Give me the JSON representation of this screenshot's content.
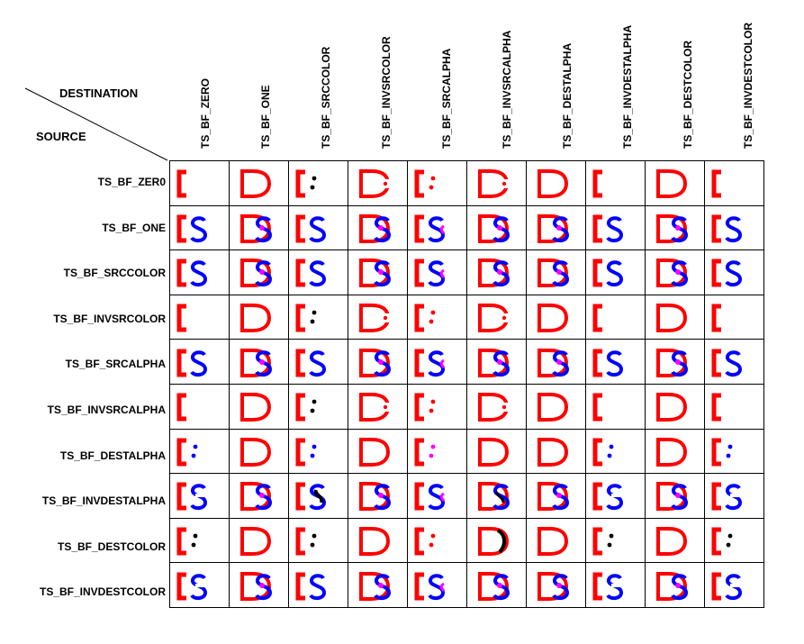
{
  "header": {
    "destination_label": "DESTINATION",
    "source_label": "SOURCE"
  },
  "columns": [
    {
      "label": "TS_BF_ZERO",
      "dest": "bracket"
    },
    {
      "label": "TS_BF_ONE",
      "dest": "D"
    },
    {
      "label": "TS_BF_SRCCOLOR",
      "dest": "bracket_dots"
    },
    {
      "label": "TS_BF_INVSRCOLOR",
      "dest": "D_broken"
    },
    {
      "label": "TS_BF_SRCALPHA",
      "dest": "bracket_dots"
    },
    {
      "label": "TS_BF_INVSRCALPHA",
      "dest": "D_broken"
    },
    {
      "label": "TS_BF_DESTALPHA",
      "dest": "D"
    },
    {
      "label": "TS_BF_INVDESTALPHA",
      "dest": "bracket"
    },
    {
      "label": "TS_BF_DESTCOLOR",
      "dest": "D"
    },
    {
      "label": "TS_BF_INVDESTCOLOR",
      "dest": "bracket"
    }
  ],
  "rows": [
    {
      "label": "TS_BF_ZER0"
    },
    {
      "label": "TS_BF_ONE"
    },
    {
      "label": "TS_BF_SRCCOLOR"
    },
    {
      "label": "TS_BF_INVSRCOLOR"
    },
    {
      "label": "TS_BF_SRCALPHA"
    },
    {
      "label": "TS_BF_INVSRCALPHA"
    },
    {
      "label": "TS_BF_DESTALPHA"
    },
    {
      "label": "TS_BF_INVDESTALPHA"
    },
    {
      "label": "TS_BF_DESTCOLOR"
    },
    {
      "label": "TS_BF_INVDESTCOLOR"
    }
  ],
  "cells": [
    [
      "bracket",
      "D",
      "bracket_dots_black",
      "D_broken",
      "bracket_dots_red",
      "D_broken",
      "D",
      "bracket",
      "D",
      "bracket"
    ],
    [
      "bracket_S",
      "D_S",
      "bracket_S",
      "D_S",
      "bracket_S_pink",
      "D_S",
      "D_S",
      "bracket_S",
      "D_S",
      "bracket_S"
    ],
    [
      "bracket_S",
      "D_S",
      "bracket_S",
      "D_S",
      "bracket_S_pink",
      "D_S",
      "D_S",
      "bracket_S",
      "D_S",
      "bracket_S"
    ],
    [
      "bracket",
      "D",
      "bracket_dots_black",
      "D_broken",
      "bracket_dots_red",
      "D_broken",
      "D",
      "bracket",
      "D",
      "bracket"
    ],
    [
      "bracket_S",
      "D_S",
      "bracket_S",
      "D_S",
      "bracket_S_pink",
      "D_S",
      "D_S",
      "bracket_S",
      "D_S",
      "bracket_S"
    ],
    [
      "bracket",
      "D",
      "bracket_dots_black",
      "D_broken",
      "bracket_dots_red",
      "D_broken",
      "D",
      "bracket",
      "D",
      "bracket"
    ],
    [
      "bracket_dots_blue",
      "D",
      "bracket_dots_blue",
      "D",
      "bracket_dots_pink",
      "D",
      "D",
      "bracket_dots_blue",
      "D",
      "bracket_dots_blue"
    ],
    [
      "bracket_S_split",
      "D_S",
      "bracket_S_dark",
      "D_S",
      "bracket_S_pink",
      "D_S_dark",
      "D_S",
      "bracket_S_split",
      "D_S",
      "bracket_S_split"
    ],
    [
      "bracket_dots_black",
      "D",
      "bracket_dots_black",
      "D",
      "bracket_dots_red",
      "D_dark",
      "D",
      "bracket_dots_black",
      "D",
      "bracket_dots_black"
    ],
    [
      "bracket_S_split",
      "D_S",
      "bracket_S",
      "D_S",
      "bracket_S_pink",
      "D_S",
      "D_S",
      "bracket_S_split",
      "D_S",
      "bracket_S_split"
    ]
  ],
  "colors": {
    "red": "#ff0000",
    "blue": "#0000ff",
    "magenta": "#ff00ff",
    "black": "#000000",
    "grid": "#000000"
  }
}
